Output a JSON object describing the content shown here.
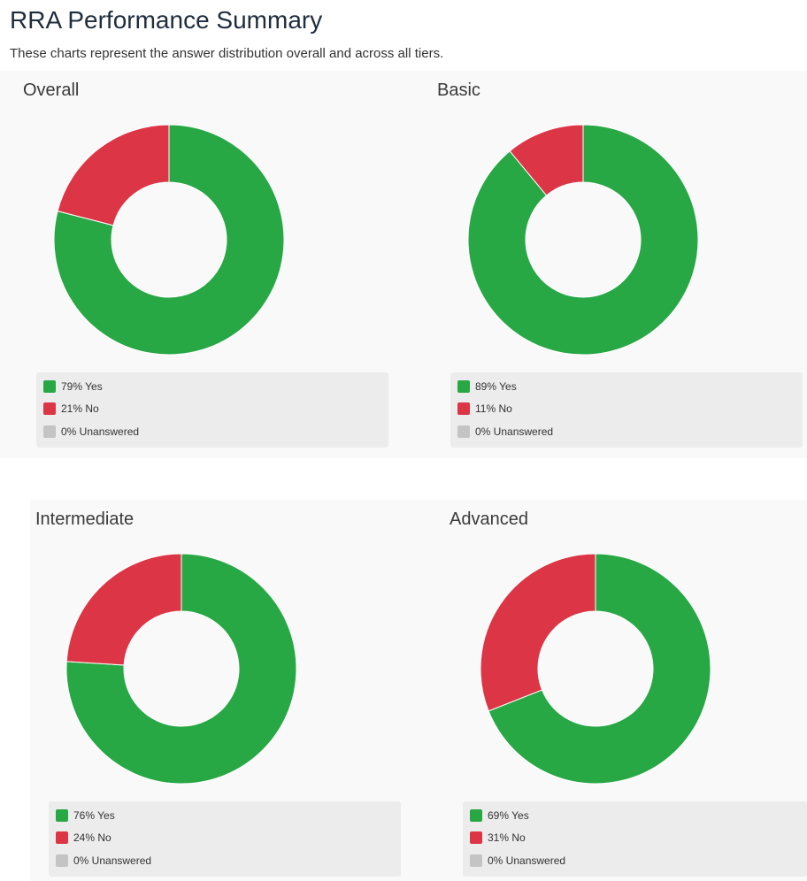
{
  "page": {
    "title": "RRA Performance Summary",
    "subtitle": "These charts represent the answer distribution overall and across all tiers."
  },
  "colors": {
    "yes": "#28a745",
    "no": "#dc3545",
    "unanswered": "#c4c4c4",
    "panel_background": "#f9f9f9",
    "legend_background": "#ececec"
  },
  "chart_data": [
    {
      "type": "pie",
      "variant": "donut",
      "title": "Overall",
      "categories": [
        "Yes",
        "No",
        "Unanswered"
      ],
      "values": [
        79,
        21,
        0
      ],
      "unit": "%",
      "legend_labels": [
        "79% Yes",
        "21% No",
        "0% Unanswered"
      ],
      "legend_position": "bottom"
    },
    {
      "type": "pie",
      "variant": "donut",
      "title": "Basic",
      "categories": [
        "Yes",
        "No",
        "Unanswered"
      ],
      "values": [
        89,
        11,
        0
      ],
      "unit": "%",
      "legend_labels": [
        "89% Yes",
        "11% No",
        "0% Unanswered"
      ],
      "legend_position": "bottom"
    },
    {
      "type": "pie",
      "variant": "donut",
      "title": "Intermediate",
      "categories": [
        "Yes",
        "No",
        "Unanswered"
      ],
      "values": [
        76,
        24,
        0
      ],
      "unit": "%",
      "legend_labels": [
        "76% Yes",
        "24% No",
        "0% Unanswered"
      ],
      "legend_position": "bottom"
    },
    {
      "type": "pie",
      "variant": "donut",
      "title": "Advanced",
      "categories": [
        "Yes",
        "No",
        "Unanswered"
      ],
      "values": [
        69,
        31,
        0
      ],
      "unit": "%",
      "legend_labels": [
        "69% Yes",
        "31% No",
        "0% Unanswered"
      ],
      "legend_position": "bottom"
    }
  ]
}
